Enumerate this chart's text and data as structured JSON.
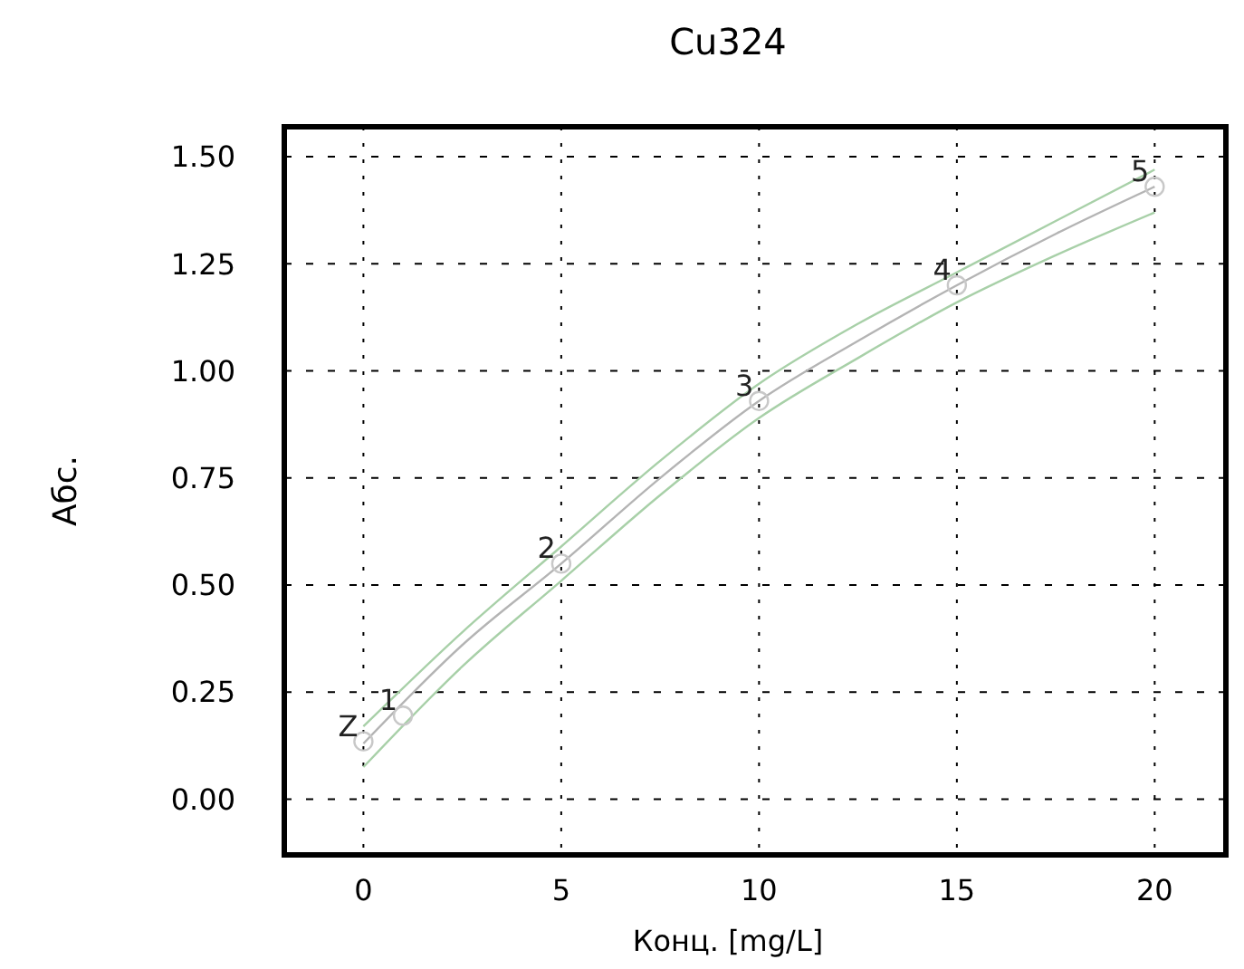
{
  "chart_data": {
    "type": "scatter",
    "title": "Cu324",
    "xlabel": "Конц. [mg/L]",
    "ylabel": "Абс.",
    "xlim": [
      -2,
      21.8
    ],
    "xticks": [
      0,
      5,
      10,
      15,
      20
    ],
    "ylim": [
      -0.13,
      1.57
    ],
    "yticks": [
      {
        "value": 0,
        "label": "0.00"
      },
      {
        "value": 0.25,
        "label": "0.25"
      },
      {
        "value": 0.5,
        "label": "0.50"
      },
      {
        "value": 0.75,
        "label": "0.75"
      },
      {
        "value": 1,
        "label": "1.00"
      },
      {
        "value": 1.25,
        "label": "1.25"
      },
      {
        "value": 1.5,
        "label": "1.50"
      }
    ],
    "grid": true,
    "marker": "circle",
    "series": [
      {
        "type": "line",
        "color": "#b4b4b4",
        "x": [
          0,
          2.5,
          5,
          7.5,
          10,
          12.5,
          15,
          17.5,
          20
        ],
        "values": [
          0.13,
          0.36,
          0.55,
          0.75,
          0.93,
          1.07,
          1.2,
          1.32,
          1.43
        ],
        "marker": "none"
      },
      {
        "type": "line",
        "color": "#a8d0a8",
        "x": [
          0,
          2.5,
          5,
          7.5,
          10,
          12.5,
          15,
          17.5,
          20
        ],
        "values": [
          0.17,
          0.39,
          0.59,
          0.79,
          0.97,
          1.11,
          1.23,
          1.35,
          1.47
        ],
        "marker": "none"
      },
      {
        "type": "line",
        "color": "#a8d0a8",
        "x": [
          0,
          2.5,
          5,
          7.5,
          10,
          12.5,
          15,
          17.5,
          20
        ],
        "values": [
          0.075,
          0.31,
          0.51,
          0.71,
          0.89,
          1.03,
          1.16,
          1.27,
          1.37
        ],
        "marker": "none"
      },
      {
        "color": "#c8c8c8",
        "x": [
          0,
          1,
          5,
          10,
          15,
          20
        ],
        "values": [
          0.135,
          0.195,
          0.55,
          0.93,
          1.2,
          1.43
        ]
      }
    ],
    "annotations": [
      {
        "text": "Z",
        "x": 0,
        "y": 0.135
      },
      {
        "text": "1",
        "x": 1,
        "y": 0.195
      },
      {
        "text": "2",
        "x": 5,
        "y": 0.55
      },
      {
        "text": "3",
        "x": 10,
        "y": 0.93
      },
      {
        "text": "4",
        "x": 15,
        "y": 1.2
      },
      {
        "text": "5",
        "x": 20,
        "y": 1.43
      }
    ]
  }
}
